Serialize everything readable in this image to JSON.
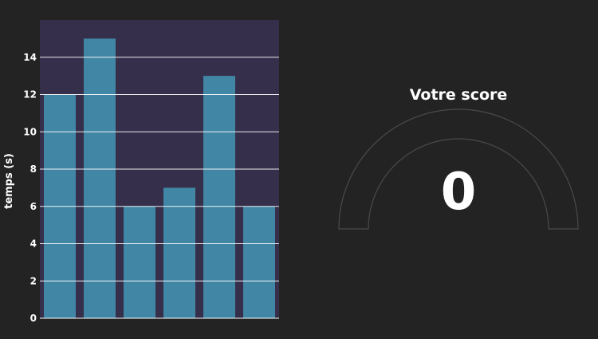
{
  "chart_data": {
    "type": "bar",
    "categories": [
      "",
      "",
      "",
      "",
      "",
      ""
    ],
    "values": [
      12,
      15,
      6,
      7,
      13,
      6
    ],
    "title": "",
    "xlabel": "",
    "ylabel": "temps (s)",
    "ylim": [
      0,
      16
    ],
    "yticks": [
      0,
      2,
      4,
      6,
      8,
      10,
      12,
      14
    ],
    "grid": true,
    "colors": {
      "plot_background": "#352f4b",
      "bar": "#4186a5",
      "grid": "#ffffff",
      "text": "#ffffff"
    }
  },
  "gauge": {
    "title": "Votre score",
    "value": "0",
    "arc_color": "#4a4a4a"
  }
}
